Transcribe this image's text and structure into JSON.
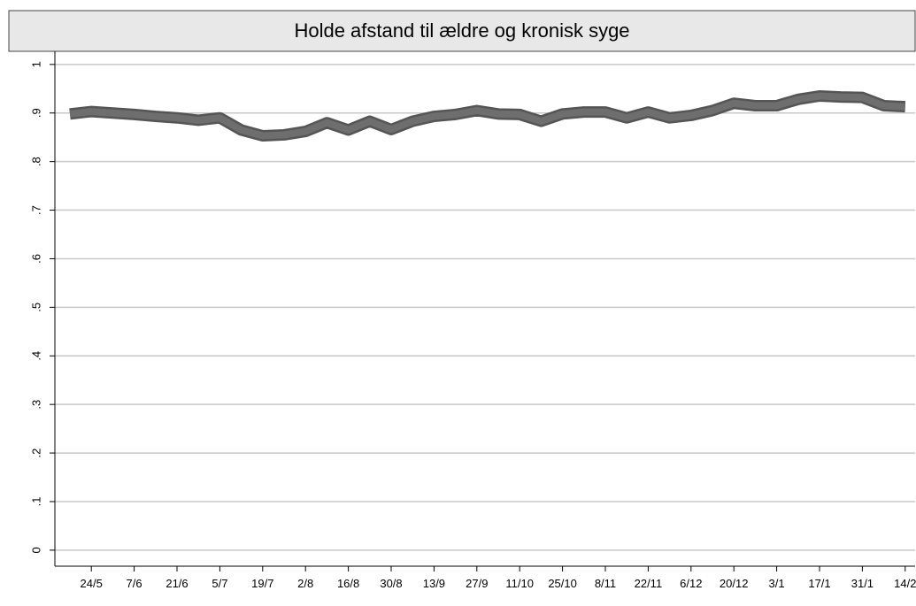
{
  "chart_data": {
    "type": "line",
    "title": "Holde afstand til ældre og kronisk syge",
    "categories": [
      null,
      "24/5",
      null,
      "7/6",
      null,
      "21/6",
      null,
      "5/7",
      null,
      "19/7",
      null,
      "2/8",
      null,
      "16/8",
      null,
      "30/8",
      null,
      "13/9",
      null,
      "27/9",
      null,
      "11/10",
      null,
      "25/10",
      null,
      "8/11",
      null,
      "22/11",
      null,
      "6/12",
      null,
      "20/12",
      null,
      "3/1",
      null,
      "17/1",
      null,
      "31/1",
      null,
      "14/2"
    ],
    "values": [
      0.898,
      0.903,
      0.9,
      0.897,
      0.893,
      0.89,
      0.885,
      0.89,
      0.865,
      0.853,
      0.855,
      0.862,
      0.88,
      0.865,
      0.883,
      0.866,
      0.883,
      0.893,
      0.897,
      0.905,
      0.898,
      0.897,
      0.883,
      0.898,
      0.902,
      0.902,
      0.89,
      0.902,
      0.89,
      0.895,
      0.905,
      0.92,
      0.915,
      0.915,
      0.928,
      0.935,
      0.933,
      0.932,
      0.915,
      0.913
    ],
    "color": "#6e6e6e",
    "ylim": [
      -0.033,
      1.027
    ],
    "yticks": [
      0,
      {
        "value": 0.1,
        "label": ".1"
      },
      {
        "value": 0.2,
        "label": ".2"
      },
      {
        "value": 0.3,
        "label": ".3"
      },
      {
        "value": 0.4,
        "label": ".4"
      },
      {
        "value": 0.5,
        "label": ".5"
      },
      {
        "value": 0.6,
        "label": ".6"
      },
      {
        "value": 0.7,
        "label": ".7"
      },
      {
        "value": 0.8,
        "label": ".8"
      },
      {
        "value": 0.9,
        "label": ".9"
      },
      1
    ],
    "grid": true
  }
}
